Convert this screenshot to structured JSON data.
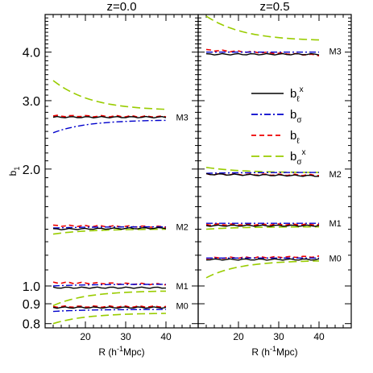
{
  "chart_data": [
    {
      "type": "line",
      "panel": "left",
      "title": "z=0.0",
      "xlabel": "R (h",
      "xlabel_sup": "-1",
      "xlabel_tail": "Mpc)",
      "ylabel": "b",
      "ylabel_sub": "1",
      "xlim": [
        10,
        48
      ],
      "ylim": [
        0.78,
        5.0
      ],
      "yscale": "log",
      "xticks": [
        20,
        30,
        40
      ],
      "yticks": [
        {
          "value": 0.8,
          "label": "0.8"
        },
        {
          "value": 0.9,
          "label": "0.9"
        },
        {
          "value": 1.0,
          "label": "1.0"
        },
        {
          "value": 2.0,
          "label": "2.0"
        },
        {
          "value": 3.0,
          "label": "3.0"
        },
        {
          "value": 4.0,
          "label": "4.0"
        }
      ],
      "mass_labels": [
        {
          "text": "M3",
          "y": 2.72
        },
        {
          "text": "M2",
          "y": 1.42
        },
        {
          "text": "M1",
          "y": 1.0
        },
        {
          "text": "M0",
          "y": 0.89
        }
      ],
      "groups": [
        {
          "b_lx": {
            "x": [
              12,
              40
            ],
            "y": [
              2.72,
              2.72
            ]
          },
          "b_s": {
            "x": [
              12,
              40
            ],
            "y": [
              2.48,
              2.67
            ]
          },
          "b_l": {
            "x": [
              12,
              40
            ],
            "y": [
              2.74,
              2.73
            ]
          },
          "b_sx": {
            "x": [
              12,
              40
            ],
            "y": [
              3.38,
              2.85
            ]
          }
        },
        {
          "b_lx": {
            "x": [
              12,
              40
            ],
            "y": [
              1.4,
              1.41
            ]
          },
          "b_s": {
            "x": [
              12,
              40
            ],
            "y": [
              1.41,
              1.42
            ]
          },
          "b_l": {
            "x": [
              12,
              40
            ],
            "y": [
              1.43,
              1.42
            ]
          },
          "b_sx": {
            "x": [
              12,
              40
            ],
            "y": [
              1.36,
              1.4
            ]
          }
        },
        {
          "b_lx": {
            "x": [
              12,
              40
            ],
            "y": [
              0.99,
              0.99
            ]
          },
          "b_s": {
            "x": [
              12,
              40
            ],
            "y": [
              1.0,
              1.01
            ]
          },
          "b_l": {
            "x": [
              12,
              40
            ],
            "y": [
              1.02,
              1.01
            ]
          },
          "b_sx": {
            "x": [
              12,
              40
            ],
            "y": [
              0.89,
              0.97
            ]
          }
        },
        {
          "b_lx": {
            "x": [
              12,
              40
            ],
            "y": [
              0.88,
              0.88
            ]
          },
          "b_s": {
            "x": [
              12,
              40
            ],
            "y": [
              0.86,
              0.87
            ]
          },
          "b_l": {
            "x": [
              12,
              40
            ],
            "y": [
              0.885,
              0.885
            ]
          },
          "b_sx": {
            "x": [
              12,
              40
            ],
            "y": [
              0.8,
              0.85
            ]
          }
        }
      ]
    },
    {
      "type": "line",
      "panel": "right",
      "title": "z=0.5",
      "xlabel": "R (h",
      "xlabel_sup": "-1",
      "xlabel_tail": "Mpc)",
      "xlim": [
        10,
        48
      ],
      "ylim": [
        0.78,
        5.0
      ],
      "yscale": "log",
      "xticks": [
        20,
        30,
        40
      ],
      "mass_labels": [
        {
          "text": "M3",
          "y": 4.02
        },
        {
          "text": "M2",
          "y": 1.94
        },
        {
          "text": "M1",
          "y": 1.45
        },
        {
          "text": "M0",
          "y": 1.18
        }
      ],
      "groups": [
        {
          "b_lx": {
            "x": [
              12,
              40
            ],
            "y": [
              3.95,
              3.95
            ]
          },
          "b_s": {
            "x": [
              12,
              40
            ],
            "y": [
              4.0,
              4.0
            ]
          },
          "b_l": {
            "x": [
              12,
              40
            ],
            "y": [
              4.05,
              3.93
            ]
          },
          "b_sx": {
            "x": [
              12,
              40
            ],
            "y": [
              4.95,
              4.3
            ]
          }
        },
        {
          "b_lx": {
            "x": [
              12,
              40
            ],
            "y": [
              1.94,
              1.92
            ]
          },
          "b_s": {
            "x": [
              12,
              40
            ],
            "y": [
              1.95,
              1.96
            ]
          },
          "b_l": {
            "x": [
              12,
              40
            ],
            "y": [
              1.94,
              1.93
            ]
          },
          "b_sx": {
            "x": [
              12,
              40
            ],
            "y": [
              2.02,
              1.96
            ]
          }
        },
        {
          "b_lx": {
            "x": [
              12,
              40
            ],
            "y": [
              1.43,
              1.43
            ]
          },
          "b_s": {
            "x": [
              12,
              40
            ],
            "y": [
              1.45,
              1.45
            ]
          },
          "b_l": {
            "x": [
              12,
              40
            ],
            "y": [
              1.44,
              1.44
            ]
          },
          "b_sx": {
            "x": [
              12,
              40
            ],
            "y": [
              1.4,
              1.42
            ]
          }
        },
        {
          "b_lx": {
            "x": [
              12,
              40
            ],
            "y": [
              1.17,
              1.17
            ]
          },
          "b_s": {
            "x": [
              12,
              40
            ],
            "y": [
              1.18,
              1.18
            ]
          },
          "b_l": {
            "x": [
              12,
              40
            ],
            "y": [
              1.18,
              1.19
            ]
          },
          "b_sx": {
            "x": [
              12,
              40
            ],
            "y": [
              1.05,
              1.16
            ]
          }
        }
      ]
    }
  ],
  "legend": {
    "placement": "inside right panel, upper middle",
    "entries": [
      {
        "key": "b_lx",
        "base": "b",
        "sub": "ℓ",
        "sup": "x",
        "color": "#000000",
        "dash": "none"
      },
      {
        "key": "b_s",
        "base": "b",
        "sub": "σ",
        "sup": "",
        "color": "#0000cc",
        "dash": "8,3,2,3"
      },
      {
        "key": "b_l",
        "base": "b",
        "sub": "ℓ",
        "sup": "",
        "color": "#ee0000",
        "dash": "6,4"
      },
      {
        "key": "b_sx",
        "base": "b",
        "sub": "σ",
        "sup": "x",
        "color": "#99cc00",
        "dash": "10,5"
      }
    ]
  }
}
